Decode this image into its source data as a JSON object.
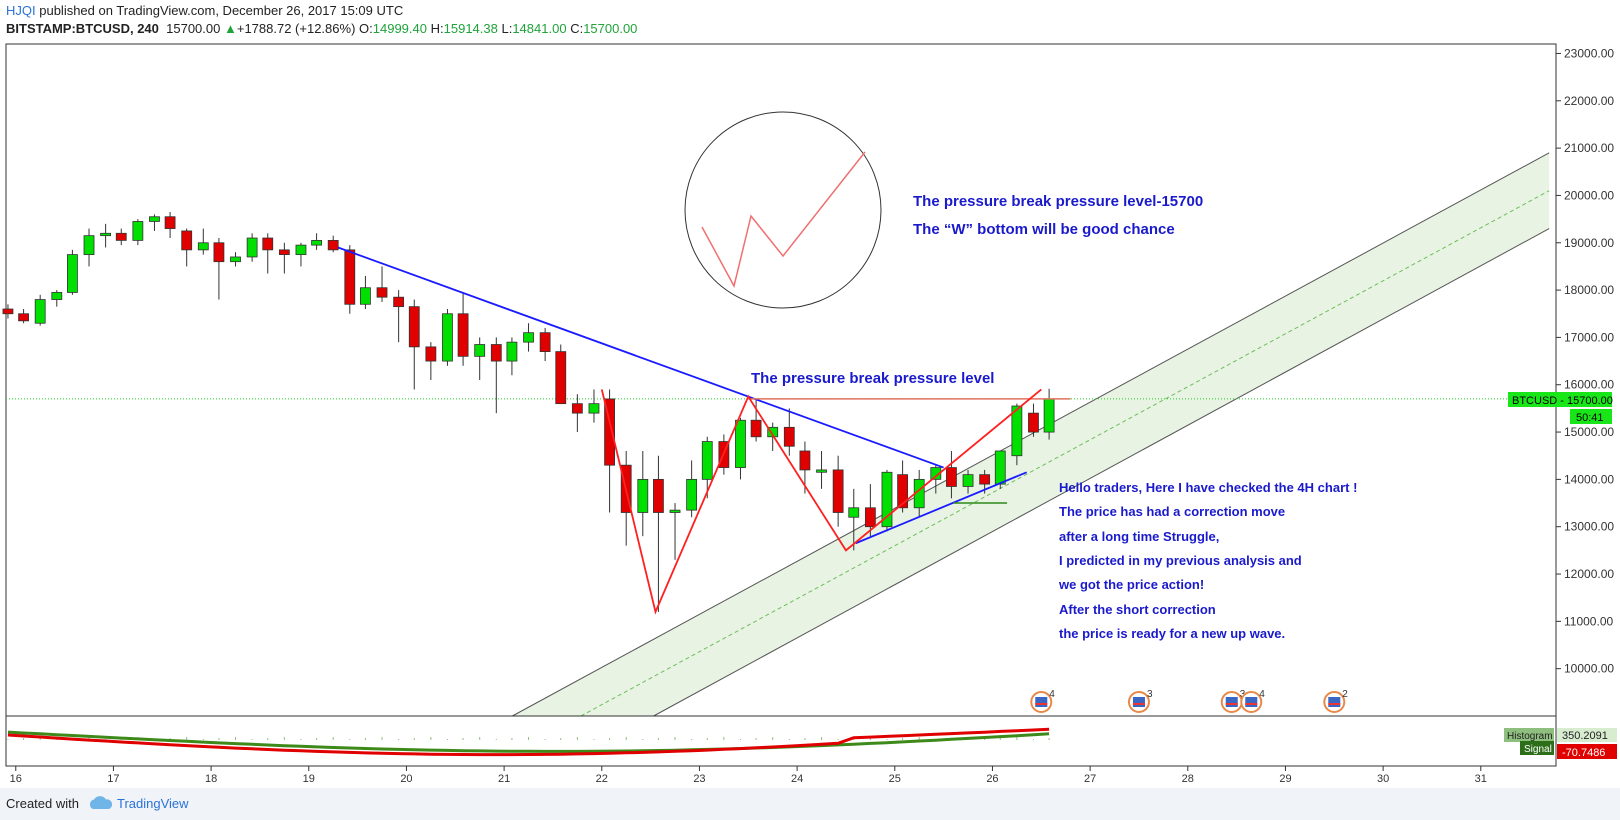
{
  "header": {
    "user": "HJQI",
    "published": " published on TradingView.com, December 26, 2017 15:09 UTC",
    "symbol": "BITSTAMP:BTCUSD, 240",
    "last": "15700.00",
    "change": "+1788.72 (+12.86%)",
    "o_label": "O:",
    "o": "14999.40",
    "h_label": "H:",
    "h": "15914.38",
    "l_label": "L:",
    "l": "14841.00",
    "c_label": "C:",
    "c": "15700.00"
  },
  "footer": {
    "created": "Created with",
    "brand": "TradingView"
  },
  "colors": {
    "up": "#00e000",
    "down": "#e00000",
    "trend": "#1a1aff",
    "zigzag": "#ff2020",
    "channel_fill": "#e6f2e0",
    "annotation": "#1a1acc",
    "current_price_bg": "#19e619"
  },
  "chart_data": {
    "type": "candlestick",
    "ylim": [
      9000,
      23200
    ],
    "y_ticks": [
      "10000.00",
      "11000.00",
      "12000.00",
      "13000.00",
      "14000.00",
      "15000.00",
      "16000.00",
      "17000.00",
      "18000.00",
      "19000.00",
      "20000.00",
      "21000.00",
      "22000.00",
      "23000.00"
    ],
    "y_tick_values": [
      10000,
      11000,
      12000,
      13000,
      14000,
      15000,
      16000,
      17000,
      18000,
      19000,
      20000,
      21000,
      22000,
      23000
    ],
    "x_ticks": [
      "16",
      "17",
      "18",
      "19",
      "20",
      "21",
      "22",
      "23",
      "24",
      "25",
      "26",
      "27",
      "28",
      "29",
      "30",
      "31"
    ],
    "x_tick_values": [
      16,
      17,
      18,
      19,
      20,
      21,
      22,
      23,
      24,
      25,
      26,
      27,
      28,
      29,
      30,
      31
    ],
    "xlim": [
      15.9,
      31.77
    ],
    "candles": [
      {
        "t": 15.92,
        "o": 17600,
        "h": 17700,
        "l": 17400,
        "c": 17500
      },
      {
        "t": 16.08,
        "o": 17500,
        "h": 17600,
        "l": 17300,
        "c": 17350
      },
      {
        "t": 16.25,
        "o": 17300,
        "h": 17900,
        "l": 17250,
        "c": 17800
      },
      {
        "t": 16.42,
        "o": 17800,
        "h": 18000,
        "l": 17650,
        "c": 17950
      },
      {
        "t": 16.58,
        "o": 17950,
        "h": 18850,
        "l": 17900,
        "c": 18750
      },
      {
        "t": 16.75,
        "o": 18750,
        "h": 19300,
        "l": 18500,
        "c": 19150
      },
      {
        "t": 16.92,
        "o": 19150,
        "h": 19400,
        "l": 18900,
        "c": 19200
      },
      {
        "t": 17.08,
        "o": 19200,
        "h": 19300,
        "l": 18950,
        "c": 19050
      },
      {
        "t": 17.25,
        "o": 19050,
        "h": 19500,
        "l": 18950,
        "c": 19450
      },
      {
        "t": 17.42,
        "o": 19450,
        "h": 19600,
        "l": 19250,
        "c": 19550
      },
      {
        "t": 17.58,
        "o": 19550,
        "h": 19650,
        "l": 19100,
        "c": 19300
      },
      {
        "t": 17.75,
        "o": 19250,
        "h": 19300,
        "l": 18500,
        "c": 18850
      },
      {
        "t": 17.92,
        "o": 18850,
        "h": 19300,
        "l": 18750,
        "c": 19000
      },
      {
        "t": 18.08,
        "o": 19000,
        "h": 19100,
        "l": 17800,
        "c": 18600
      },
      {
        "t": 18.25,
        "o": 18600,
        "h": 18800,
        "l": 18500,
        "c": 18700
      },
      {
        "t": 18.42,
        "o": 18700,
        "h": 19200,
        "l": 18600,
        "c": 19100
      },
      {
        "t": 18.58,
        "o": 19100,
        "h": 19200,
        "l": 18350,
        "c": 18850
      },
      {
        "t": 18.75,
        "o": 18850,
        "h": 19000,
        "l": 18350,
        "c": 18750
      },
      {
        "t": 18.92,
        "o": 18750,
        "h": 19000,
        "l": 18500,
        "c": 18950
      },
      {
        "t": 19.08,
        "o": 18950,
        "h": 19200,
        "l": 18850,
        "c": 19050
      },
      {
        "t": 19.25,
        "o": 19050,
        "h": 19150,
        "l": 18800,
        "c": 18850
      },
      {
        "t": 19.42,
        "o": 18850,
        "h": 18950,
        "l": 17500,
        "c": 17700
      },
      {
        "t": 19.58,
        "o": 17700,
        "h": 18300,
        "l": 17600,
        "c": 18050
      },
      {
        "t": 19.75,
        "o": 18050,
        "h": 18500,
        "l": 17750,
        "c": 17850
      },
      {
        "t": 19.92,
        "o": 17850,
        "h": 18000,
        "l": 16900,
        "c": 17650
      },
      {
        "t": 20.08,
        "o": 17650,
        "h": 17800,
        "l": 15900,
        "c": 16800
      },
      {
        "t": 20.25,
        "o": 16800,
        "h": 16900,
        "l": 16100,
        "c": 16500
      },
      {
        "t": 20.42,
        "o": 16500,
        "h": 17600,
        "l": 16400,
        "c": 17500
      },
      {
        "t": 20.58,
        "o": 17500,
        "h": 17950,
        "l": 16400,
        "c": 16600
      },
      {
        "t": 20.75,
        "o": 16600,
        "h": 17000,
        "l": 16100,
        "c": 16850
      },
      {
        "t": 20.92,
        "o": 16850,
        "h": 17000,
        "l": 15400,
        "c": 16500
      },
      {
        "t": 21.08,
        "o": 16500,
        "h": 17000,
        "l": 16200,
        "c": 16900
      },
      {
        "t": 21.25,
        "o": 16900,
        "h": 17300,
        "l": 16700,
        "c": 17100
      },
      {
        "t": 21.42,
        "o": 17100,
        "h": 17200,
        "l": 16500,
        "c": 16700
      },
      {
        "t": 21.58,
        "o": 16700,
        "h": 16850,
        "l": 15600,
        "c": 15600
      },
      {
        "t": 21.75,
        "o": 15600,
        "h": 15800,
        "l": 15000,
        "c": 15400
      },
      {
        "t": 21.92,
        "o": 15400,
        "h": 15900,
        "l": 15200,
        "c": 15600
      },
      {
        "t": 22.08,
        "o": 15700,
        "h": 15900,
        "l": 13300,
        "c": 14300
      },
      {
        "t": 22.25,
        "o": 14300,
        "h": 14600,
        "l": 12600,
        "c": 13300
      },
      {
        "t": 22.42,
        "o": 13300,
        "h": 14600,
        "l": 12800,
        "c": 14000
      },
      {
        "t": 22.58,
        "o": 14000,
        "h": 14500,
        "l": 11200,
        "c": 13300
      },
      {
        "t": 22.75,
        "o": 13300,
        "h": 13500,
        "l": 12300,
        "c": 13350
      },
      {
        "t": 22.92,
        "o": 13350,
        "h": 14400,
        "l": 13200,
        "c": 14000
      },
      {
        "t": 23.08,
        "o": 14000,
        "h": 14900,
        "l": 13600,
        "c": 14800
      },
      {
        "t": 23.25,
        "o": 14800,
        "h": 14950,
        "l": 14100,
        "c": 14250
      },
      {
        "t": 23.42,
        "o": 14250,
        "h": 15300,
        "l": 14000,
        "c": 15250
      },
      {
        "t": 23.58,
        "o": 15250,
        "h": 15700,
        "l": 14800,
        "c": 14900
      },
      {
        "t": 23.75,
        "o": 14900,
        "h": 15200,
        "l": 14600,
        "c": 15100
      },
      {
        "t": 23.92,
        "o": 15100,
        "h": 15500,
        "l": 14500,
        "c": 14700
      },
      {
        "t": 24.08,
        "o": 14600,
        "h": 14800,
        "l": 13700,
        "c": 14200
      },
      {
        "t": 24.25,
        "o": 14150,
        "h": 14600,
        "l": 13800,
        "c": 14200
      },
      {
        "t": 24.42,
        "o": 14200,
        "h": 14500,
        "l": 13000,
        "c": 13300
      },
      {
        "t": 24.58,
        "o": 13200,
        "h": 13800,
        "l": 12500,
        "c": 13400
      },
      {
        "t": 24.75,
        "o": 13400,
        "h": 13900,
        "l": 12800,
        "c": 13000
      },
      {
        "t": 24.92,
        "o": 13000,
        "h": 14200,
        "l": 12900,
        "c": 14150
      },
      {
        "t": 25.08,
        "o": 14100,
        "h": 14400,
        "l": 13300,
        "c": 13400
      },
      {
        "t": 25.25,
        "o": 13400,
        "h": 14200,
        "l": 13200,
        "c": 14000
      },
      {
        "t": 25.42,
        "o": 14000,
        "h": 14300,
        "l": 13700,
        "c": 14250
      },
      {
        "t": 25.58,
        "o": 14250,
        "h": 14600,
        "l": 13600,
        "c": 13850
      },
      {
        "t": 25.75,
        "o": 13850,
        "h": 14200,
        "l": 13700,
        "c": 14100
      },
      {
        "t": 25.92,
        "o": 14100,
        "h": 14200,
        "l": 13700,
        "c": 13900
      },
      {
        "t": 26.08,
        "o": 13900,
        "h": 14600,
        "l": 13800,
        "c": 14600
      },
      {
        "t": 26.25,
        "o": 14500,
        "h": 15600,
        "l": 14300,
        "c": 15550
      },
      {
        "t": 26.42,
        "o": 15400,
        "h": 15600,
        "l": 14900,
        "c": 14999
      },
      {
        "t": 26.58,
        "o": 14999.4,
        "h": 15914.38,
        "l": 14841,
        "c": 15700
      }
    ],
    "trendline_upper": [
      [
        19.3,
        18900
      ],
      [
        25.5,
        14250
      ]
    ],
    "trendline_lower": [
      [
        24.6,
        12650
      ],
      [
        26.35,
        14150
      ]
    ],
    "support_segment": [
      [
        25.6,
        13500
      ],
      [
        26.15,
        13500
      ]
    ],
    "zigzag": [
      [
        22.0,
        15900
      ],
      [
        22.55,
        11200
      ],
      [
        23.5,
        15750
      ],
      [
        24.5,
        12500
      ],
      [
        26.5,
        15900
      ]
    ],
    "resistance_level": [
      [
        23.5,
        15700
      ],
      [
        26.8,
        15700
      ]
    ],
    "channel": {
      "upper": [
        [
          19.3,
          7000
        ],
        [
          31.7,
          20900
        ]
      ],
      "lower": [
        [
          20.75,
          7000
        ],
        [
          31.7,
          19300
        ]
      ],
      "mid": [
        [
          20.0,
          7000
        ],
        [
          31.7,
          20100
        ]
      ]
    },
    "current_price_label": "BTCUSD - 15700.00",
    "countdown": "50:41",
    "current_price": 15700,
    "annotations": {
      "top_line1": "The pressure break pressure level-15700",
      "top_line2": "The “W” bottom will be good chance",
      "mid_label": "The pressure break pressure level",
      "body": [
        "Hello traders, Here I have checked the 4H chart !",
        "The price has had a correction move",
        "after a long time Struggle,",
        "I predicted in my previous analysis and",
        "we got the price action!",
        "After the short correction",
        "the price is ready for a new up wave."
      ]
    },
    "events": [
      {
        "t": 26.5,
        "count": "4"
      },
      {
        "t": 27.5,
        "count": "3"
      },
      {
        "t": 28.45,
        "count": "3"
      },
      {
        "t": 28.65,
        "count": "4"
      },
      {
        "t": 29.5,
        "count": "2"
      }
    ],
    "indicator": {
      "histogram_label": "Histogram",
      "histogram_value": "350.2091",
      "signal_label": "Signal",
      "signal_value": "-70.7486"
    }
  }
}
